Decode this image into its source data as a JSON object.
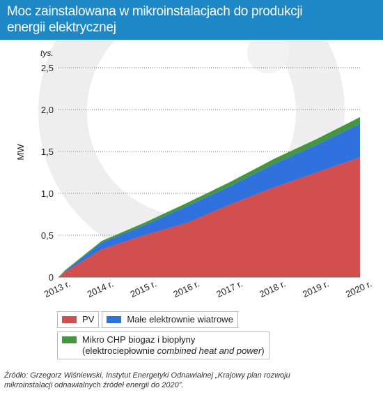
{
  "header": {
    "title_line1": "Moc zainstalowana w mikroinstalacjach do produkcji",
    "title_line2": "energii elektrycznej"
  },
  "colors": {
    "header_bg": "#1e87c6",
    "pv": "#d14f4f",
    "wind": "#2f72dd",
    "chp": "#44963f",
    "watermark": "#eeeeee"
  },
  "chart_data": {
    "type": "area",
    "stacked": true,
    "unit_label": "tys.",
    "ylabel": "MW",
    "ylim": [
      0,
      2.5
    ],
    "yticks": [
      "0",
      "0,5",
      "1,0",
      "1,5",
      "2,0",
      "2,5"
    ],
    "ytick_values": [
      0,
      0.5,
      1.0,
      1.5,
      2.0,
      2.5
    ],
    "categories": [
      "2013 r.",
      "2014 r.",
      "2015 r.",
      "2016 r.",
      "2017 r.",
      "2018 r.",
      "2019 r.",
      "2020 r."
    ],
    "x": [
      2013,
      2014,
      2015,
      2016,
      2017,
      2018,
      2019,
      2020
    ],
    "grid": "horizontal-dotted",
    "series": [
      {
        "name": "PV",
        "color": "#d14f4f",
        "points": [
          [
            2013,
            0.0
          ],
          [
            2013.15,
            0.06
          ],
          [
            2014,
            0.33
          ],
          [
            2015,
            0.5
          ],
          [
            2016,
            0.65
          ],
          [
            2017,
            0.87
          ],
          [
            2018,
            1.07
          ],
          [
            2019,
            1.25
          ],
          [
            2020,
            1.43
          ]
        ]
      },
      {
        "name": "Małe elektrownie wiatrowe",
        "color": "#2f72dd",
        "points": [
          [
            2013,
            0.0
          ],
          [
            2013.15,
            0.01
          ],
          [
            2014,
            0.08
          ],
          [
            2015,
            0.12
          ],
          [
            2016,
            0.2
          ],
          [
            2017,
            0.22
          ],
          [
            2018,
            0.28
          ],
          [
            2019,
            0.33
          ],
          [
            2020,
            0.4
          ]
        ]
      },
      {
        "name": "Mikro CHP biogaz i biopłyny (elektrociepłownie combined heat and power)",
        "color": "#44963f",
        "points": [
          [
            2013,
            0.0
          ],
          [
            2013.15,
            0.01
          ],
          [
            2014,
            0.02
          ],
          [
            2015,
            0.03
          ],
          [
            2016,
            0.04
          ],
          [
            2017,
            0.05
          ],
          [
            2018,
            0.06
          ],
          [
            2019,
            0.07
          ],
          [
            2020,
            0.08
          ]
        ]
      }
    ]
  },
  "legend": {
    "pv": "PV",
    "wind": "Małe elektrownie wiatrowe",
    "chp_line1": "Mikro CHP biogaz i biopłyny",
    "chp_line2_prefix": "(elektrociepłownie ",
    "chp_line2_italic": "combined heat and power",
    "chp_line2_suffix": ")"
  },
  "source": {
    "line1": "Źródło: Grzegorz Wiśniewski, Instytut Energetyki Odnawialnej „Krajowy plan rozwoju",
    "line2": "mikroinstalacji odnawialnych źródeł energii do 2020”."
  }
}
